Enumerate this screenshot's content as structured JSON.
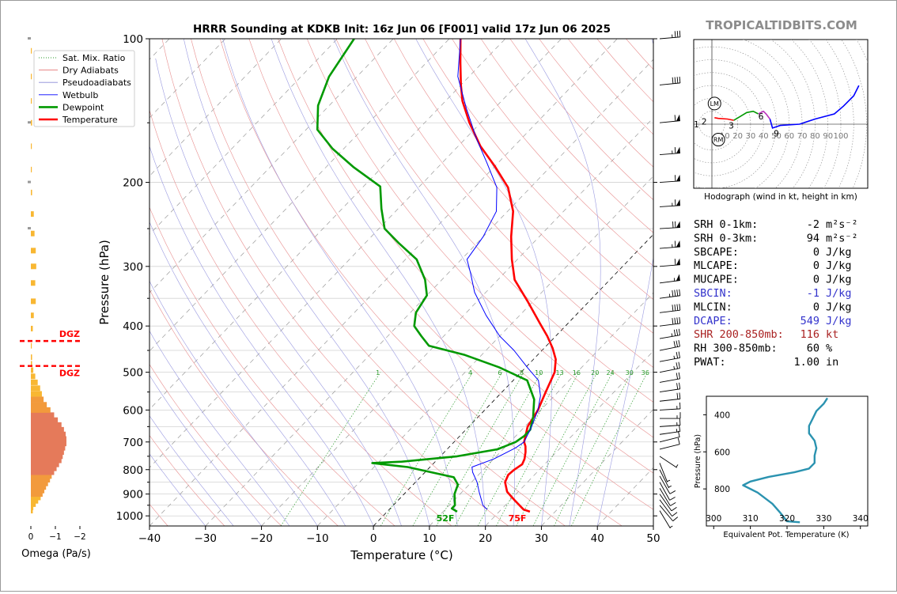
{
  "title": "HRRR Sounding at KDKB Init: 16z Jun 06 [F001] valid 17z Jun 06 2025",
  "watermark": "TROPICALTIDBITS.COM",
  "skewt": {
    "xlabel": "Temperature (°C)",
    "ylabel": "Pressure (hPa)",
    "pressure_ticks": [
      100,
      200,
      300,
      400,
      500,
      600,
      700,
      800,
      900,
      1000
    ],
    "temp_ticks": [
      -40,
      -30,
      -20,
      -10,
      0,
      10,
      20,
      30,
      40,
      50
    ],
    "xlim": [
      -40,
      50
    ],
    "ylim": [
      1050,
      100
    ],
    "surface_temp_label": "75F",
    "surface_dewpoint_label": "52F",
    "mixing_ratio_labels": [
      "1",
      "4",
      "6",
      "8",
      "10",
      "13",
      "16",
      "20",
      "24",
      "30",
      "36"
    ]
  },
  "legend": [
    {
      "label": "Sat. Mix. Ratio",
      "color": "#2a9a2a",
      "style": "dotted"
    },
    {
      "label": "Dry Adiabats",
      "color": "#e06060",
      "style": "solid"
    },
    {
      "label": "Pseudoadiabats",
      "color": "#8a8ad8",
      "style": "solid"
    },
    {
      "label": "Wetbulb",
      "color": "#0000ff",
      "style": "solid"
    },
    {
      "label": "Dewpoint",
      "color": "#009900",
      "style": "thick"
    },
    {
      "label": "Temperature",
      "color": "#ff0000",
      "style": "thick"
    }
  ],
  "chart_data": [
    {
      "type": "line",
      "name": "skewt",
      "series": [
        {
          "name": "Temperature",
          "color": "#ff0000",
          "points": [
            [
              25.5,
              980
            ],
            [
              24,
              970
            ],
            [
              21,
              930
            ],
            [
              18,
              890
            ],
            [
              16,
              850
            ],
            [
              15.3,
              820
            ],
            [
              15.5,
              800
            ],
            [
              16,
              780
            ],
            [
              15.5,
              760
            ],
            [
              14.5,
              735
            ],
            [
              13.5,
              715
            ],
            [
              12.5,
              700
            ],
            [
              10.5,
              650
            ],
            [
              9.5,
              600
            ],
            [
              7.8,
              550
            ],
            [
              6,
              500
            ],
            [
              4,
              470
            ],
            [
              1.5,
              445
            ],
            [
              -1.5,
              420
            ],
            [
              -5,
              395
            ],
            [
              -11,
              355
            ],
            [
              -17,
              320
            ],
            [
              -21,
              290
            ],
            [
              -25,
              260
            ],
            [
              -29,
              230
            ],
            [
              -34,
              205
            ],
            [
              -40,
              185
            ],
            [
              -46,
              168
            ],
            [
              -52,
              150
            ],
            [
              -57,
              135
            ],
            [
              -60,
              125
            ],
            [
              -64,
              112
            ],
            [
              -68,
              100
            ]
          ]
        },
        {
          "name": "Dewpoint",
          "color": "#009900",
          "points": [
            [
              12.5,
              980
            ],
            [
              11,
              965
            ],
            [
              11,
              950
            ],
            [
              9,
              900
            ],
            [
              8,
              860
            ],
            [
              6,
              830
            ],
            [
              -4,
              790
            ],
            [
              -11,
              775
            ],
            [
              -6,
              770
            ],
            [
              3,
              750
            ],
            [
              9,
              725
            ],
            [
              11,
              700
            ],
            [
              11.5,
              680
            ],
            [
              11.5,
              660
            ],
            [
              9.8,
              620
            ],
            [
              7,
              570
            ],
            [
              2.5,
              520
            ],
            [
              -4.8,
              488
            ],
            [
              -13,
              460
            ],
            [
              -21,
              440
            ],
            [
              -24,
              420
            ],
            [
              -27,
              400
            ],
            [
              -29,
              375
            ],
            [
              -30,
              345
            ],
            [
              -33,
              320
            ],
            [
              -38,
              290
            ],
            [
              -44,
              268
            ],
            [
              -49,
              250
            ],
            [
              -53,
              227
            ],
            [
              -57,
              204
            ],
            [
              -65,
              186
            ],
            [
              -72,
              170
            ],
            [
              -78,
              155
            ],
            [
              -82,
              138
            ],
            [
              -85,
              120
            ],
            [
              -87,
              100
            ]
          ]
        },
        {
          "name": "Wetbulb",
          "color": "#0000ff",
          "points": [
            [
              17.5,
              970
            ],
            [
              16,
              950
            ],
            [
              13,
              890
            ],
            [
              11,
              850
            ],
            [
              8.5,
              810
            ],
            [
              7.5,
              790
            ],
            [
              10,
              760
            ],
            [
              11,
              740
            ],
            [
              12,
              720
            ],
            [
              12.5,
              700
            ],
            [
              12,
              680
            ],
            [
              11.5,
              660
            ],
            [
              9.5,
              600
            ],
            [
              7.5,
              560
            ],
            [
              4.5,
              520
            ],
            [
              0.5,
              490
            ],
            [
              -5,
              450
            ],
            [
              -10,
              420
            ],
            [
              -16,
              380
            ],
            [
              -22,
              340
            ],
            [
              -26,
              310
            ],
            [
              -29,
              290
            ],
            [
              -30,
              260
            ],
            [
              -32,
              230
            ],
            [
              -36,
              205
            ],
            [
              -42,
              182
            ],
            [
              -48,
              162
            ],
            [
              -55,
              140
            ],
            [
              -62,
              120
            ],
            [
              -68,
              100
            ]
          ]
        }
      ]
    },
    {
      "type": "bar",
      "name": "omega",
      "xlabel": "Omega (Pa/s)",
      "xlim": [
        0.05,
        -2.1
      ],
      "x_ticks": [
        "0",
        "−1",
        "−2"
      ],
      "dgz_label": "DGZ",
      "dgz_levels": [
        430,
        485
      ],
      "levels": [
        975,
        960,
        945,
        930,
        915,
        900,
        885,
        870,
        855,
        840,
        825,
        810,
        795,
        780,
        765,
        750,
        735,
        720,
        705,
        690,
        675,
        660,
        645,
        630,
        615,
        600,
        585,
        570,
        555,
        540,
        525,
        510,
        495,
        480,
        465,
        440,
        405,
        380,
        355,
        325,
        300,
        278,
        256,
        233,
        210,
        188,
        168,
        150,
        135,
        120,
        106
      ],
      "values": [
        -0.08,
        -0.1,
        -0.2,
        -0.3,
        -0.4,
        -0.48,
        -0.55,
        -0.62,
        -0.7,
        -0.78,
        -0.85,
        -0.95,
        -1.05,
        -1.15,
        -1.25,
        -1.3,
        -1.35,
        -1.4,
        -1.45,
        -1.45,
        -1.42,
        -1.35,
        -1.25,
        -1.1,
        -0.95,
        -0.8,
        -0.65,
        -0.52,
        -0.45,
        -0.38,
        -0.28,
        -0.18,
        -0.1,
        -0.05,
        -0.05,
        -0.02,
        -0.08,
        -0.12,
        -0.2,
        -0.18,
        -0.22,
        -0.2,
        -0.15,
        -0.12,
        -0.05,
        -0.03,
        -0.02,
        -0.05,
        -0.03,
        -0.02,
        -0.03
      ]
    },
    {
      "type": "line",
      "name": "hodograph",
      "caption": "Hodograph (wind in kt, height in km)",
      "ring_labels": [
        "10",
        "20",
        "30",
        "40",
        "50",
        "60",
        "70",
        "80",
        "90",
        "100"
      ],
      "height_labels": [
        "1",
        "2",
        "3",
        "6",
        "9"
      ],
      "storm_motion_labels": [
        "LM",
        "RM"
      ],
      "segments": [
        {
          "color": "#ff0000",
          "points": [
            [
              2,
              5
            ],
            [
              5,
              4.5
            ],
            [
              12,
              4
            ],
            [
              17,
              3
            ]
          ]
        },
        {
          "color": "#009900",
          "points": [
            [
              17,
              3
            ],
            [
              22,
              6
            ],
            [
              27,
              9
            ],
            [
              32,
              10
            ],
            [
              36,
              8
            ]
          ]
        },
        {
          "color": "#bb33bb",
          "points": [
            [
              36,
              8
            ],
            [
              40,
              10
            ],
            [
              42,
              8
            ],
            [
              45,
              4
            ]
          ]
        },
        {
          "color": "#0000ff",
          "points": [
            [
              45,
              4
            ],
            [
              47,
              -3
            ],
            [
              53,
              -1
            ],
            [
              68,
              0
            ],
            [
              80,
              4
            ],
            [
              95,
              8
            ],
            [
              102,
              14
            ],
            [
              110,
              22
            ],
            [
              114,
              30
            ]
          ]
        }
      ]
    },
    {
      "type": "line",
      "name": "theta-e",
      "xlabel": "Equivalent Pot. Temperature (K)",
      "ylabel": "Pressure (hPa)",
      "x_ticks": [
        300,
        310,
        320,
        330,
        340
      ],
      "y_ticks": [
        400,
        600,
        800
      ],
      "xlim": [
        298,
        342
      ],
      "ylim": [
        1000,
        300
      ],
      "points": [
        [
          323.5,
          980
        ],
        [
          320,
          975
        ],
        [
          319,
          950
        ],
        [
          318,
          925
        ],
        [
          316,
          880
        ],
        [
          312,
          820
        ],
        [
          308,
          780
        ],
        [
          310,
          760
        ],
        [
          315,
          735
        ],
        [
          322,
          710
        ],
        [
          326,
          690
        ],
        [
          327.5,
          660
        ],
        [
          327.5,
          620
        ],
        [
          328,
          580
        ],
        [
          327.5,
          540
        ],
        [
          326,
          500
        ],
        [
          326,
          460
        ],
        [
          327,
          420
        ],
        [
          328,
          380
        ],
        [
          330,
          340
        ],
        [
          331,
          310
        ]
      ]
    }
  ],
  "stats": [
    {
      "label": "SRH 0-1km:",
      "value": "-2",
      "unit": "m²s⁻²",
      "color": "#000000"
    },
    {
      "label": "SRH 0-3km:",
      "value": "94",
      "unit": "m²s⁻²",
      "color": "#000000"
    },
    {
      "label": "SBCAPE:",
      "value": "0",
      "unit": "J/kg",
      "color": "#000000"
    },
    {
      "label": "MLCAPE:",
      "value": "0",
      "unit": "J/kg",
      "color": "#000000"
    },
    {
      "label": "MUCAPE:",
      "value": "0",
      "unit": "J/kg",
      "color": "#000000"
    },
    {
      "label": "SBCIN:",
      "value": "-1",
      "unit": "J/kg",
      "color": "#3333cc"
    },
    {
      "label": "MLCIN:",
      "value": "0",
      "unit": "J/kg",
      "color": "#000000"
    },
    {
      "label": "DCAPE:",
      "value": "549",
      "unit": "J/kg",
      "color": "#3333cc"
    },
    {
      "label": "SHR 200-850mb:",
      "value": "116",
      "unit": "kt",
      "color": "#aa2222"
    },
    {
      "label": "RH 300-850mb:",
      "value": "60",
      "unit": "%",
      "color": "#000000"
    },
    {
      "label": "PWAT:",
      "value": "1.00",
      "unit": "in",
      "color": "#000000"
    }
  ],
  "wind_barbs": [
    {
      "p": 975,
      "u": -3,
      "v": 5
    },
    {
      "p": 950,
      "u": -5,
      "v": 6
    },
    {
      "p": 925,
      "u": -6,
      "v": 8
    },
    {
      "p": 900,
      "u": -7,
      "v": 10
    },
    {
      "p": 875,
      "u": -6,
      "v": 10
    },
    {
      "p": 850,
      "u": -5,
      "v": 9
    },
    {
      "p": 825,
      "u": -4,
      "v": 7
    },
    {
      "p": 800,
      "u": -3,
      "v": 6
    },
    {
      "p": 775,
      "u": -2,
      "v": 5
    },
    {
      "p": 750,
      "u": -3,
      "v": 2
    },
    {
      "p": 725,
      "u": -8,
      "v": -2
    },
    {
      "p": 700,
      "u": -12,
      "v": -3
    },
    {
      "p": 675,
      "u": -14,
      "v": -2
    },
    {
      "p": 650,
      "u": -15,
      "v": -1
    },
    {
      "p": 625,
      "u": -16,
      "v": 0
    },
    {
      "p": 600,
      "u": -17,
      "v": -1
    },
    {
      "p": 575,
      "u": -18,
      "v": -2
    },
    {
      "p": 550,
      "u": -20,
      "v": -3
    },
    {
      "p": 525,
      "u": -22,
      "v": -4
    },
    {
      "p": 500,
      "u": -25,
      "v": -5
    },
    {
      "p": 475,
      "u": -27,
      "v": -5
    },
    {
      "p": 450,
      "u": -30,
      "v": -6
    },
    {
      "p": 425,
      "u": -35,
      "v": -6
    },
    {
      "p": 400,
      "u": -40,
      "v": -5
    },
    {
      "p": 375,
      "u": -42,
      "v": -5
    },
    {
      "p": 350,
      "u": -45,
      "v": -6
    },
    {
      "p": 325,
      "u": -55,
      "v": -7
    },
    {
      "p": 300,
      "u": -60,
      "v": -5
    },
    {
      "p": 275,
      "u": -65,
      "v": -5
    },
    {
      "p": 250,
      "u": -70,
      "v": -4
    },
    {
      "p": 225,
      "u": -65,
      "v": -4
    },
    {
      "p": 200,
      "u": -60,
      "v": -4
    },
    {
      "p": 175,
      "u": -65,
      "v": -5
    },
    {
      "p": 150,
      "u": -60,
      "v": -6
    },
    {
      "p": 125,
      "u": -40,
      "v": -4
    },
    {
      "p": 100,
      "u": -35,
      "v": -3
    }
  ]
}
